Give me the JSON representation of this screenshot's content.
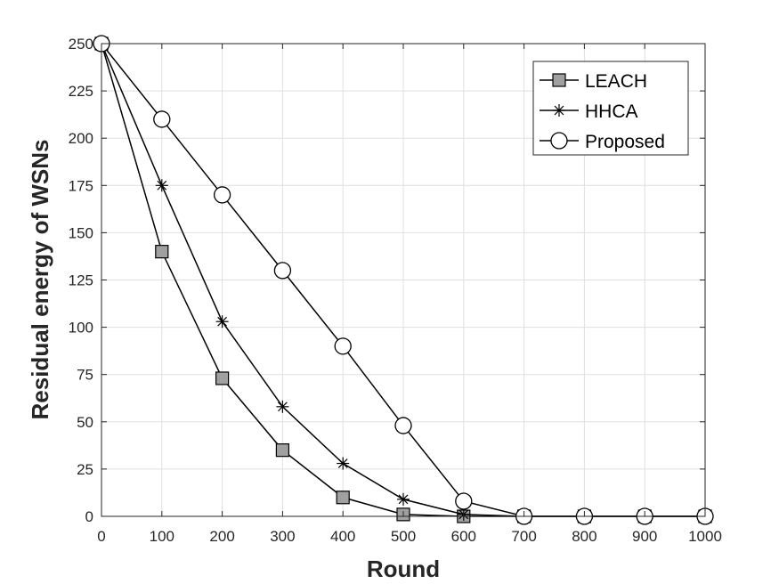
{
  "chart_data": {
    "type": "line",
    "xlabel": "Round",
    "ylabel": "Residual energy of WSNs",
    "xlim": [
      0,
      1000
    ],
    "ylim": [
      0,
      250
    ],
    "x_ticks": [
      0,
      100,
      200,
      300,
      400,
      500,
      600,
      700,
      800,
      900,
      1000
    ],
    "y_ticks": [
      0,
      25,
      50,
      75,
      100,
      125,
      150,
      175,
      200,
      225,
      250
    ],
    "grid": true,
    "legend_position": "top-right",
    "x": [
      0,
      100,
      200,
      300,
      400,
      500,
      600,
      700,
      800,
      900,
      1000
    ],
    "series": [
      {
        "name": "LEACH",
        "marker": "square",
        "values": [
          250,
          140,
          73,
          35,
          10,
          1,
          0,
          0,
          0,
          0,
          0
        ]
      },
      {
        "name": "HHCA",
        "marker": "asterisk",
        "values": [
          250,
          175,
          103,
          58,
          28,
          9,
          1,
          0,
          0,
          0,
          0
        ]
      },
      {
        "name": "Proposed",
        "marker": "circle",
        "values": [
          250,
          210,
          170,
          130,
          90,
          48,
          8,
          0,
          0,
          0,
          0
        ]
      }
    ],
    "colors": {
      "line": "#000000",
      "square_fill": "#a0a0a0",
      "circle_fill": "#ffffff",
      "grid": "#dfdfdf",
      "axis": "#262626"
    }
  }
}
